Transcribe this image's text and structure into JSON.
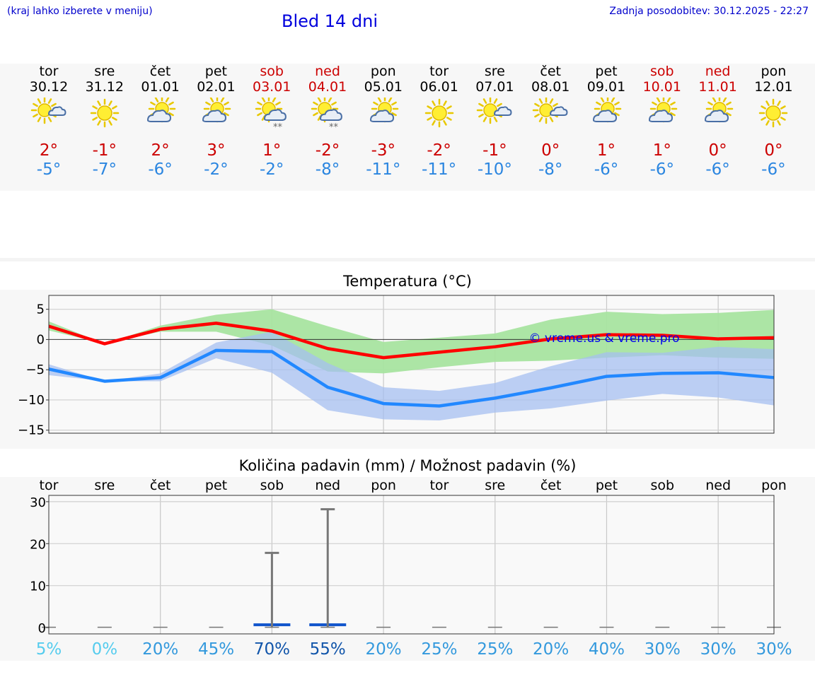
{
  "header": {
    "hint": "(kraj lahko izberete v meniju)",
    "title": "Bled 14 dni",
    "updated": "Zadnja posodobitev: 30.12.2025 - 22:27"
  },
  "days": [
    {
      "name": "tor",
      "date": "30.12",
      "weekend": false,
      "icon": "sun-cloud-small-icon",
      "max": "2°",
      "min": "-5°"
    },
    {
      "name": "sre",
      "date": "31.12",
      "weekend": false,
      "icon": "sun-icon",
      "max": "-1°",
      "min": "-7°"
    },
    {
      "name": "čet",
      "date": "01.01",
      "weekend": false,
      "icon": "sun-cloud-icon",
      "max": "2°",
      "min": "-6°"
    },
    {
      "name": "pet",
      "date": "02.01",
      "weekend": false,
      "icon": "sun-cloud-icon",
      "max": "3°",
      "min": "-2°"
    },
    {
      "name": "sob",
      "date": "03.01",
      "weekend": true,
      "icon": "sun-cloud-snow-icon",
      "max": "1°",
      "min": "-2°"
    },
    {
      "name": "ned",
      "date": "04.01",
      "weekend": true,
      "icon": "sun-cloud-snow-icon",
      "max": "-2°",
      "min": "-8°"
    },
    {
      "name": "pon",
      "date": "05.01",
      "weekend": false,
      "icon": "sun-cloud-icon",
      "max": "-3°",
      "min": "-11°"
    },
    {
      "name": "tor",
      "date": "06.01",
      "weekend": false,
      "icon": "sun-icon",
      "max": "-2°",
      "min": "-11°"
    },
    {
      "name": "sre",
      "date": "07.01",
      "weekend": false,
      "icon": "sun-cloud-small-icon",
      "max": "-1°",
      "min": "-10°"
    },
    {
      "name": "čet",
      "date": "08.01",
      "weekend": false,
      "icon": "sun-cloud-small-icon",
      "max": "0°",
      "min": "-8°"
    },
    {
      "name": "pet",
      "date": "09.01",
      "weekend": false,
      "icon": "sun-cloud-icon",
      "max": "1°",
      "min": "-6°"
    },
    {
      "name": "sob",
      "date": "10.01",
      "weekend": true,
      "icon": "sun-cloud-icon",
      "max": "1°",
      "min": "-6°"
    },
    {
      "name": "ned",
      "date": "11.01",
      "weekend": true,
      "icon": "sun-cloud-icon",
      "max": "0°",
      "min": "-6°"
    },
    {
      "name": "pon",
      "date": "12.01",
      "weekend": false,
      "icon": "sun-icon",
      "max": "0°",
      "min": "-6°"
    }
  ],
  "colors": {
    "max_line": "#ff0000",
    "min_line": "#2288ff",
    "max_band": "#a8e4a0",
    "min_band": "#a6bff0",
    "overlap_band": "#7fc8b8",
    "weekend": "#cc0000",
    "watermark": "#0000ee"
  },
  "chart_data": [
    {
      "type": "line",
      "title": "Temperatura (°C)",
      "watermark": "© vreme.us & vreme.pro",
      "x": [
        0,
        1,
        2,
        3,
        4,
        5,
        6,
        7,
        8,
        9,
        10,
        11,
        12,
        13
      ],
      "ylim": [
        -15.5,
        7.3
      ],
      "yticks": [
        5,
        0,
        -5,
        -10,
        -15
      ],
      "ytick_labels": [
        "5",
        "0",
        "−5",
        "−10",
        "−15"
      ],
      "series": [
        {
          "name": "max",
          "values": [
            2.2,
            -0.7,
            1.7,
            2.7,
            1.4,
            -1.5,
            -3.0,
            -2.1,
            -1.2,
            0.1,
            0.8,
            0.7,
            0.1,
            0.3
          ]
        },
        {
          "name": "min",
          "values": [
            -4.9,
            -6.9,
            -6.3,
            -1.8,
            -2.0,
            -7.9,
            -10.6,
            -11.0,
            -9.7,
            -8.0,
            -6.1,
            -5.6,
            -5.5,
            -6.3
          ]
        }
      ],
      "bands": [
        {
          "name": "max_range",
          "upper": [
            3.0,
            -0.7,
            2.3,
            4.1,
            5.0,
            2.2,
            -0.4,
            0.3,
            1.0,
            3.3,
            4.6,
            4.2,
            4.4,
            4.9
          ],
          "lower": [
            1.5,
            -0.7,
            1.3,
            1.3,
            -1.0,
            -5.3,
            -5.6,
            -4.6,
            -3.7,
            -3.5,
            -3.0,
            -2.6,
            -3.0,
            -3.2
          ]
        },
        {
          "name": "min_range",
          "upper": [
            -4.1,
            -6.9,
            -5.6,
            -0.5,
            1.3,
            -3.9,
            -7.9,
            -8.5,
            -7.2,
            -4.4,
            -2.1,
            -2.2,
            -1.2,
            -1.6
          ],
          "lower": [
            -5.9,
            -6.9,
            -6.9,
            -3.1,
            -5.5,
            -11.7,
            -13.2,
            -13.4,
            -12.1,
            -11.4,
            -10.1,
            -9.0,
            -9.6,
            -10.9
          ]
        }
      ]
    },
    {
      "type": "bar",
      "title": "Količina padavin (mm) / Možnost padavin (%)",
      "categories": [
        "tor",
        "sre",
        "čet",
        "pet",
        "sob",
        "ned",
        "pon",
        "tor",
        "sre",
        "čet",
        "pet",
        "sob",
        "ned",
        "pon"
      ],
      "values": [
        0,
        0,
        0,
        0,
        0.5,
        0.5,
        0,
        0,
        0,
        0,
        0,
        0,
        0,
        0
      ],
      "error_max": [
        0,
        0,
        0,
        0,
        17.8,
        28.2,
        0,
        0,
        0,
        0,
        0,
        0,
        0,
        0
      ],
      "ylim": [
        -1.5,
        31.5
      ],
      "yticks": [
        0,
        10,
        20,
        30
      ],
      "probabilities": [
        "5%",
        "0%",
        "20%",
        "45%",
        "70%",
        "55%",
        "20%",
        "25%",
        "25%",
        "20%",
        "40%",
        "30%",
        "30%",
        "30%"
      ],
      "prob_colors": [
        "#55ccee",
        "#55ccee",
        "#3399dd",
        "#3399dd",
        "#1155aa",
        "#1155aa",
        "#3399dd",
        "#3399dd",
        "#3399dd",
        "#3399dd",
        "#3399dd",
        "#3399dd",
        "#3399dd",
        "#3399dd"
      ]
    }
  ]
}
